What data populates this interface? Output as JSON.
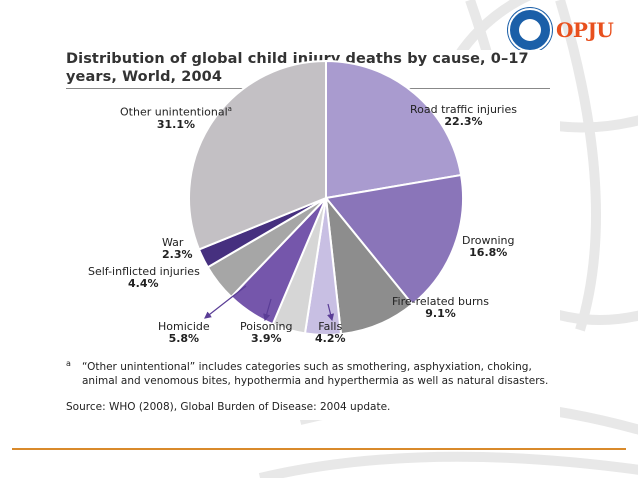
{
  "logo": {
    "text": "OPJU",
    "seal_text": "O.P. JINDAL UNIVERSITY"
  },
  "title": "Distribution of global child injury deaths by cause, 0–17 years, World, 2004",
  "footnote": {
    "mark": "a",
    "text": "“Other unintentional” includes categories such as smothering, asphyxiation, choking, animal and venomous bites, hypothermia and hyperthermia as well as natural disasters."
  },
  "source": "Source: WHO (2008), Global Burden of Disease: 2004 update.",
  "colors": {
    "bottom_rule": "#d98a2b",
    "logo_text": "#e8501e"
  },
  "chart_data": {
    "type": "pie",
    "title": "Distribution of global child injury deaths by cause, 0–17 years, World, 2004",
    "unit": "%",
    "start_angle_deg": 0,
    "direction": "clockwise",
    "slices": [
      {
        "label": "Road traffic injuries",
        "value": 22.3,
        "display": "22.3%",
        "color": "#a99bcf"
      },
      {
        "label": "Drowning",
        "value": 16.8,
        "display": "16.8%",
        "color": "#8a75b9"
      },
      {
        "label": "Fire-related burns",
        "value": 9.1,
        "display": "9.1%",
        "color": "#8d8d8d"
      },
      {
        "label": "Falls",
        "value": 4.2,
        "display": "4.2%",
        "color": "#c8bfe3"
      },
      {
        "label": "Poisoning",
        "value": 3.9,
        "display": "3.9%",
        "color": "#d6d6d6"
      },
      {
        "label": "Homicide",
        "value": 5.8,
        "display": "5.8%",
        "color": "#7556ab"
      },
      {
        "label": "Self-inflicted injuries",
        "value": 4.4,
        "display": "4.4%",
        "color": "#a6a6a6"
      },
      {
        "label": "War",
        "value": 2.3,
        "display": "2.3%",
        "color": "#46307f"
      },
      {
        "label": "Other unintentional",
        "label_superscript": "a",
        "value": 31.1,
        "display": "31.1%",
        "color": "#c3c0c4"
      }
    ]
  }
}
